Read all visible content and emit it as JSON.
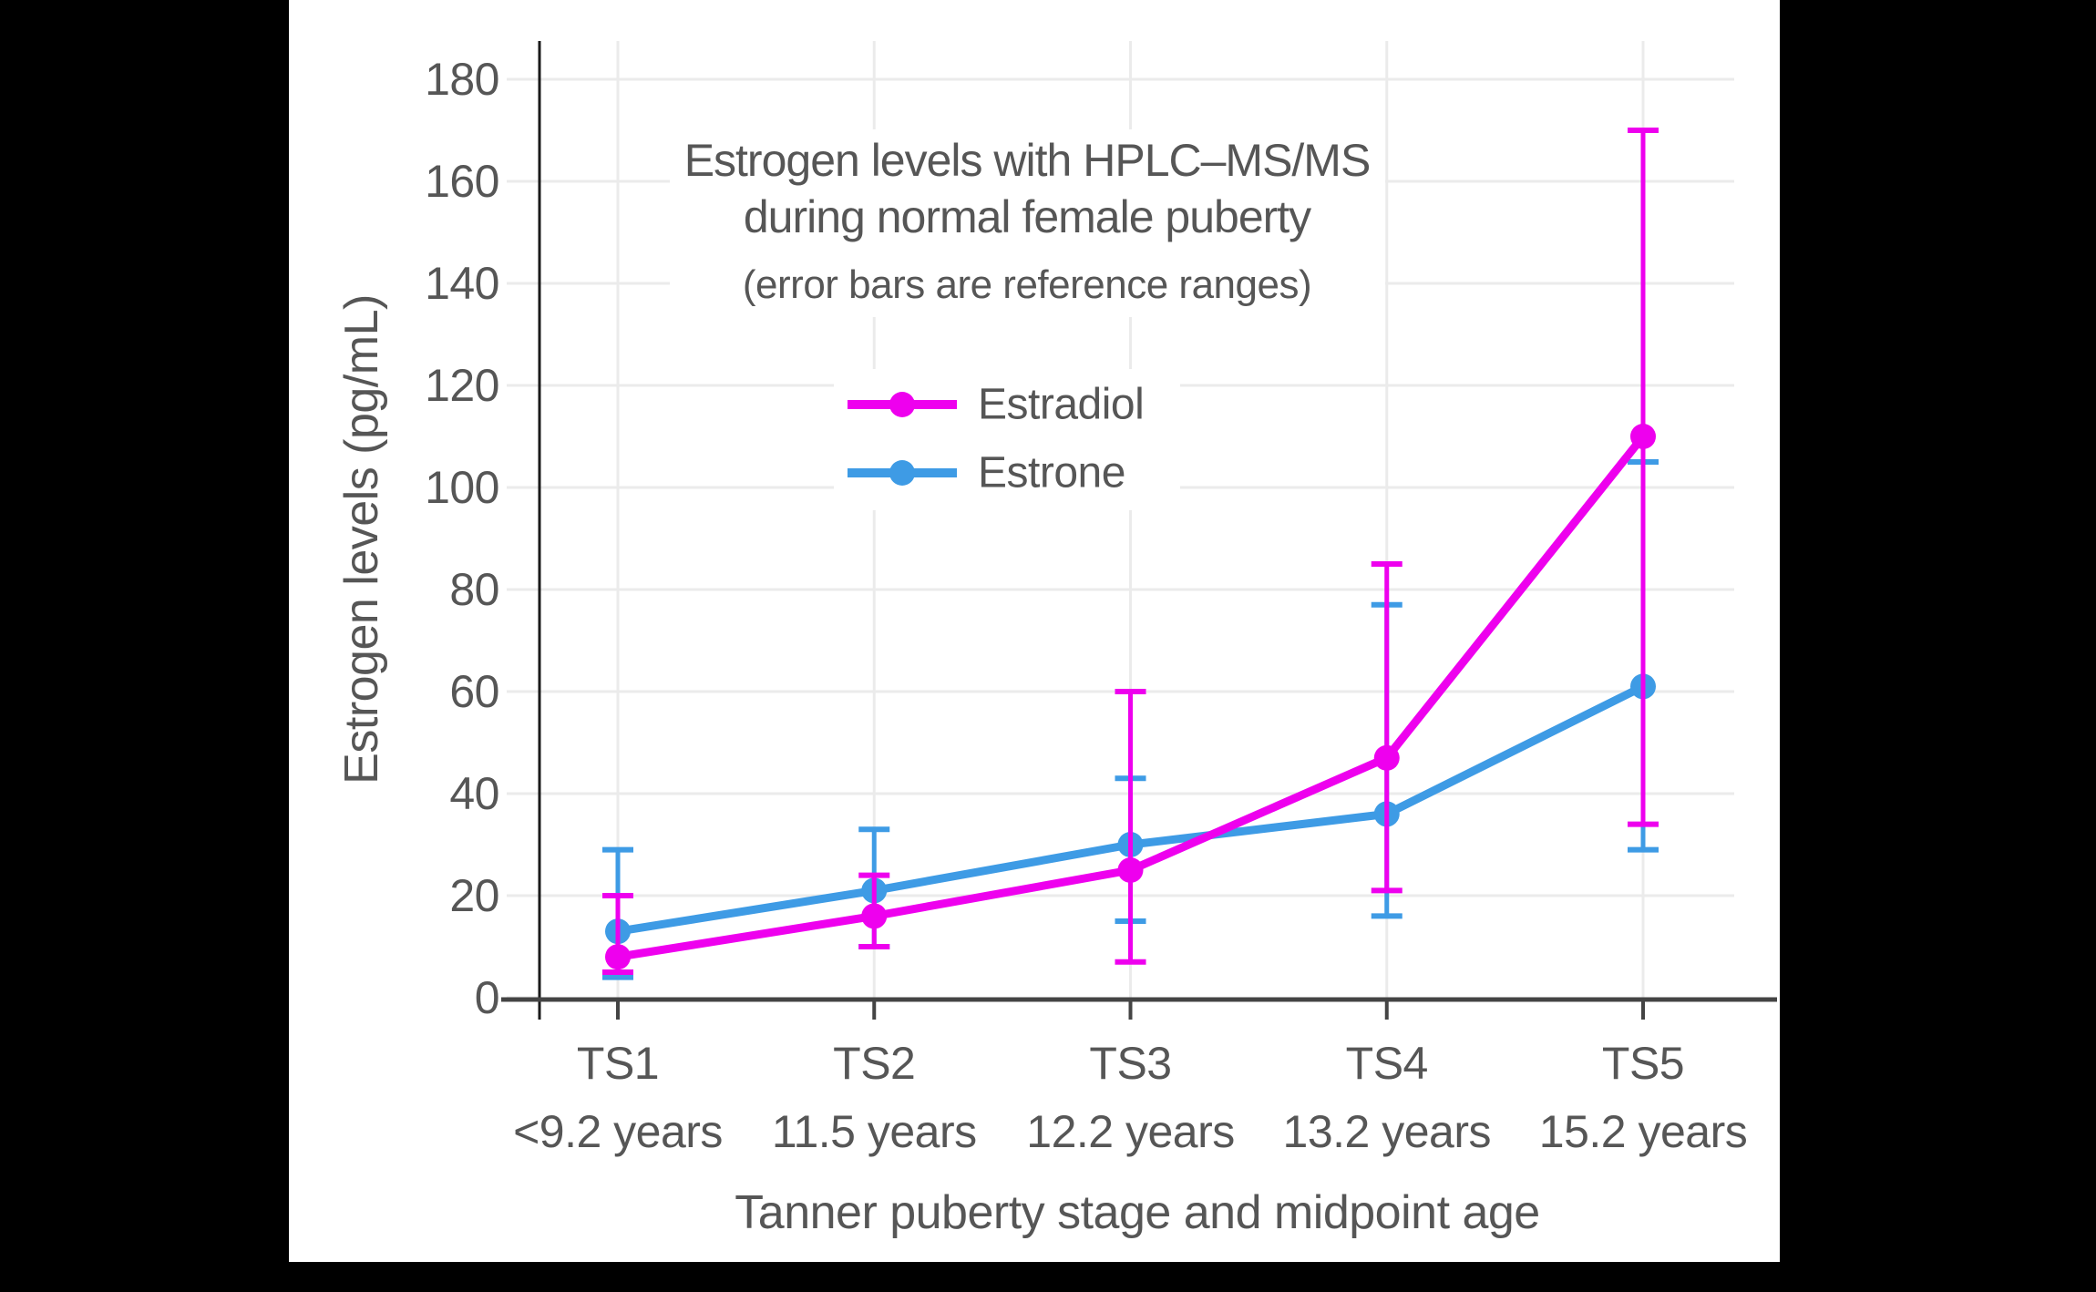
{
  "colors": {
    "background": "#000000",
    "panel": "#ffffff",
    "grid": "#ebebeb",
    "x_axis_line": "#444444",
    "y_axis_line": "#1a1a1a",
    "text": "#565656",
    "estradiol": "#ee00ee",
    "estrone": "#3e9be5"
  },
  "title": {
    "line1": "Estrogen levels with HPLC–MS/MS",
    "line2": "during normal female puberty",
    "subtitle": "(error bars are reference ranges)"
  },
  "chart_data": {
    "type": "line",
    "title": "Estrogen levels with HPLC–MS/MS during normal female puberty",
    "subtitle": "(error bars are reference ranges)",
    "xlabel": "Tanner puberty stage and midpoint age",
    "ylabel": "Estrogen levels (pg/mL)",
    "categories": [
      "TS1",
      "TS2",
      "TS3",
      "TS4",
      "TS5"
    ],
    "category_ages": [
      "<9.2 years",
      "11.5 years",
      "12.2 years",
      "13.2 years",
      "15.2 years"
    ],
    "yticks": [
      0,
      20,
      40,
      60,
      80,
      100,
      120,
      140,
      160,
      180
    ],
    "ylim": [
      0,
      187
    ],
    "grid": "on",
    "legend_position": "upper-center-inside",
    "error_bars": "reference ranges",
    "series": [
      {
        "name": "Estradiol",
        "color": "#ee00ee",
        "values": [
          8,
          16,
          25,
          47,
          110
        ],
        "error_low": [
          5,
          10,
          7,
          21,
          34
        ],
        "error_high": [
          20,
          24,
          60,
          85,
          170
        ]
      },
      {
        "name": "Estrone",
        "color": "#3e9be5",
        "values": [
          13,
          21,
          30,
          36,
          61
        ],
        "error_low": [
          4,
          10,
          15,
          16,
          29
        ],
        "error_high": [
          29,
          33,
          43,
          77,
          105
        ]
      }
    ]
  }
}
